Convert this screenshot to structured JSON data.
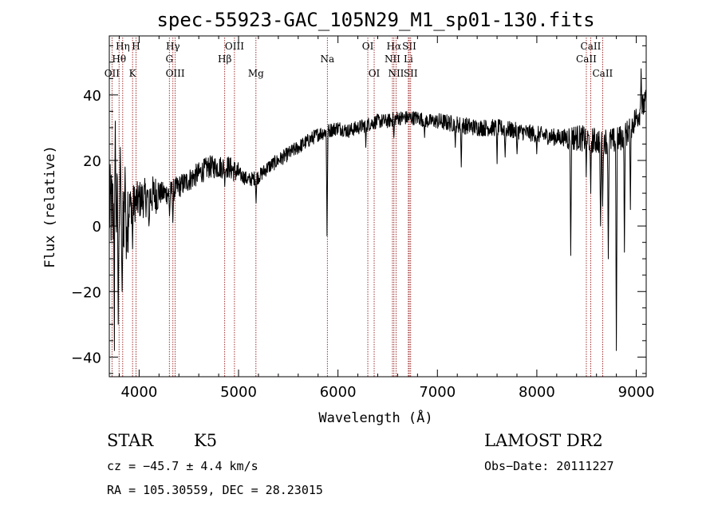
{
  "chart_data": {
    "type": "line",
    "title": "spec-55923-GAC_105N29_M1_sp01-130.fits",
    "xlabel": "Wavelength (Å)",
    "ylabel": "Flux (relative)",
    "xlim": [
      3700,
      9100
    ],
    "ylim": [
      -46,
      58
    ],
    "x_ticks": [
      4000,
      5000,
      6000,
      7000,
      8000,
      9000
    ],
    "y_ticks": [
      -40,
      -20,
      0,
      20,
      40
    ],
    "line_color": "#000000",
    "marker_color": "#8b0000",
    "continuum": [
      [
        3700,
        5
      ],
      [
        3800,
        4
      ],
      [
        3900,
        6
      ],
      [
        4000,
        8
      ],
      [
        4100,
        9
      ],
      [
        4200,
        10
      ],
      [
        4300,
        10
      ],
      [
        4400,
        12
      ],
      [
        4500,
        14
      ],
      [
        4600,
        16
      ],
      [
        4700,
        18
      ],
      [
        4800,
        18
      ],
      [
        4900,
        18
      ],
      [
        5000,
        16
      ],
      [
        5100,
        14
      ],
      [
        5200,
        15
      ],
      [
        5300,
        18
      ],
      [
        5400,
        20
      ],
      [
        5500,
        22
      ],
      [
        5600,
        24
      ],
      [
        5700,
        26
      ],
      [
        5800,
        28
      ],
      [
        5900,
        29
      ],
      [
        6000,
        30
      ],
      [
        6100,
        29
      ],
      [
        6200,
        30
      ],
      [
        6300,
        31
      ],
      [
        6400,
        32
      ],
      [
        6500,
        32
      ],
      [
        6600,
        33
      ],
      [
        6700,
        33
      ],
      [
        6800,
        33
      ],
      [
        6900,
        32
      ],
      [
        7000,
        32
      ],
      [
        7200,
        31
      ],
      [
        7400,
        30
      ],
      [
        7600,
        30
      ],
      [
        7800,
        29
      ],
      [
        8000,
        28
      ],
      [
        8200,
        27
      ],
      [
        8400,
        27
      ],
      [
        8600,
        26
      ],
      [
        8700,
        26
      ],
      [
        8800,
        26
      ],
      [
        8900,
        28
      ],
      [
        9000,
        33
      ],
      [
        9100,
        38
      ]
    ],
    "absorption": [
      [
        3750,
        -38
      ],
      [
        3790,
        -30
      ],
      [
        3830,
        -20
      ],
      [
        3870,
        -10
      ],
      [
        3934,
        -7
      ],
      [
        4100,
        0
      ],
      [
        4305,
        3
      ],
      [
        4340,
        1
      ],
      [
        4861,
        12
      ],
      [
        5175,
        7
      ],
      [
        5890,
        -3
      ],
      [
        6280,
        24
      ],
      [
        6563,
        27
      ],
      [
        6870,
        27
      ],
      [
        7180,
        24
      ],
      [
        7240,
        18
      ],
      [
        7600,
        19
      ],
      [
        7680,
        21
      ],
      [
        7800,
        22
      ],
      [
        8000,
        22
      ],
      [
        8340,
        -9
      ],
      [
        8498,
        15
      ],
      [
        8542,
        10
      ],
      [
        8640,
        0
      ],
      [
        8662,
        6
      ],
      [
        8720,
        -10
      ],
      [
        8800,
        -38
      ],
      [
        8880,
        -8
      ],
      [
        8940,
        5
      ]
    ],
    "emission": [
      [
        3760,
        32
      ],
      [
        3810,
        24
      ],
      [
        3860,
        18
      ],
      [
        9050,
        48
      ]
    ],
    "line_markers": [
      {
        "label": "OII",
        "x": 3727,
        "row": 3
      },
      {
        "label": "Hθ",
        "x": 3798,
        "row": 2
      },
      {
        "label": "Hη",
        "x": 3835,
        "row": 1
      },
      {
        "label": "K",
        "x": 3934,
        "row": 3
      },
      {
        "label": "H",
        "x": 3969,
        "row": 1
      },
      {
        "label": "Hγ",
        "x": 4340,
        "row": 1
      },
      {
        "label": "G",
        "x": 4304,
        "row": 2
      },
      {
        "label": "OIII",
        "x": 4363,
        "row": 3
      },
      {
        "label": "Hβ",
        "x": 4861,
        "row": 2
      },
      {
        "label": "OIII",
        "x": 4959,
        "row": 1
      },
      {
        "label": "Mg",
        "x": 5175,
        "row": 3
      },
      {
        "label": "Na",
        "x": 5893,
        "row": 2
      },
      {
        "label": "OI",
        "x": 6300,
        "row": 1
      },
      {
        "label": "OI",
        "x": 6364,
        "row": 3
      },
      {
        "label": "Hα",
        "x": 6563,
        "row": 1
      },
      {
        "label": "NII",
        "x": 6548,
        "row": 2
      },
      {
        "label": "NII",
        "x": 6584,
        "row": 3
      },
      {
        "label": "SII",
        "x": 6717,
        "row": 1
      },
      {
        "label": "Li",
        "x": 6708,
        "row": 2
      },
      {
        "label": "SII",
        "x": 6731,
        "row": 3
      },
      {
        "label": "CaII",
        "x": 8542,
        "row": 1
      },
      {
        "label": "CaII",
        "x": 8498,
        "row": 2
      },
      {
        "label": "CaII",
        "x": 8662,
        "row": 3
      }
    ]
  },
  "info": {
    "object_class": "STAR",
    "subclass": "K5",
    "survey": "LAMOST DR2",
    "cz": "cz = −45.7 ± 4.4 km/s",
    "obs_date": "Obs−Date: 20111227",
    "coords": "RA = 105.30559, DEC =  28.23015"
  }
}
